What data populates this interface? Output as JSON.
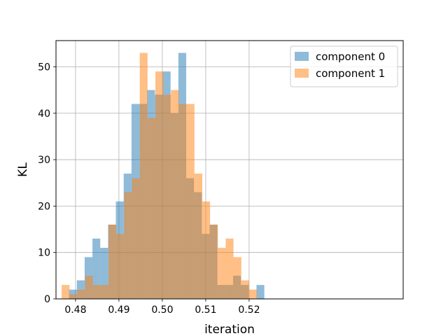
{
  "chart_data": {
    "type": "histogram",
    "xlabel": "iteration",
    "ylabel": "KL",
    "xlim": [
      0.4755,
      0.5555
    ],
    "ylim": [
      0,
      55.65
    ],
    "xticks": [
      0.48,
      0.49,
      0.5,
      0.51,
      0.52
    ],
    "xtick_labels": [
      "0.48",
      "0.49",
      "0.50",
      "0.51",
      "0.52"
    ],
    "yticks": [
      0,
      10,
      20,
      30,
      40,
      50
    ],
    "ytick_labels": [
      "0",
      "10",
      "20",
      "30",
      "40",
      "50"
    ],
    "grid": true,
    "legend_position": "upper right",
    "series": [
      {
        "name": "component 0",
        "color": "#1f77b4",
        "alpha": 0.5,
        "bins": [
          {
            "x0": 0.4785,
            "x1": 0.4803,
            "count": 2
          },
          {
            "x0": 0.4803,
            "x1": 0.4821,
            "count": 4
          },
          {
            "x0": 0.4821,
            "x1": 0.4839,
            "count": 9
          },
          {
            "x0": 0.4839,
            "x1": 0.4857,
            "count": 13
          },
          {
            "x0": 0.4857,
            "x1": 0.4875,
            "count": 11
          },
          {
            "x0": 0.4875,
            "x1": 0.4893,
            "count": 16
          },
          {
            "x0": 0.4893,
            "x1": 0.4911,
            "count": 21
          },
          {
            "x0": 0.4911,
            "x1": 0.4929,
            "count": 27
          },
          {
            "x0": 0.4929,
            "x1": 0.4947,
            "count": 42
          },
          {
            "x0": 0.4947,
            "x1": 0.4965,
            "count": 42
          },
          {
            "x0": 0.4965,
            "x1": 0.4983,
            "count": 45
          },
          {
            "x0": 0.4983,
            "x1": 0.5001,
            "count": 44
          },
          {
            "x0": 0.5001,
            "x1": 0.5019,
            "count": 49
          },
          {
            "x0": 0.5019,
            "x1": 0.5037,
            "count": 40
          },
          {
            "x0": 0.5037,
            "x1": 0.5055,
            "count": 53
          },
          {
            "x0": 0.5055,
            "x1": 0.5073,
            "count": 26
          },
          {
            "x0": 0.5073,
            "x1": 0.5091,
            "count": 23
          },
          {
            "x0": 0.5091,
            "x1": 0.5109,
            "count": 14
          },
          {
            "x0": 0.5109,
            "x1": 0.5127,
            "count": 16
          },
          {
            "x0": 0.5127,
            "x1": 0.5145,
            "count": 3
          },
          {
            "x0": 0.5145,
            "x1": 0.5163,
            "count": 3
          },
          {
            "x0": 0.5163,
            "x1": 0.5181,
            "count": 5
          },
          {
            "x0": 0.5181,
            "x1": 0.5199,
            "count": 3
          },
          {
            "x0": 0.5199,
            "x1": 0.5217,
            "count": 0
          },
          {
            "x0": 0.5217,
            "x1": 0.5235,
            "count": 3
          }
        ]
      },
      {
        "name": "component 1",
        "color": "#ff7f0e",
        "alpha": 0.5,
        "bins": [
          {
            "x0": 0.4768,
            "x1": 0.4786,
            "count": 3
          },
          {
            "x0": 0.4786,
            "x1": 0.4804,
            "count": 1
          },
          {
            "x0": 0.4804,
            "x1": 0.4822,
            "count": 2
          },
          {
            "x0": 0.4822,
            "x1": 0.484,
            "count": 5
          },
          {
            "x0": 0.484,
            "x1": 0.4858,
            "count": 3
          },
          {
            "x0": 0.4858,
            "x1": 0.4876,
            "count": 3
          },
          {
            "x0": 0.4876,
            "x1": 0.4894,
            "count": 16
          },
          {
            "x0": 0.4894,
            "x1": 0.4912,
            "count": 14
          },
          {
            "x0": 0.4912,
            "x1": 0.493,
            "count": 23
          },
          {
            "x0": 0.493,
            "x1": 0.4948,
            "count": 26
          },
          {
            "x0": 0.4948,
            "x1": 0.4966,
            "count": 53
          },
          {
            "x0": 0.4966,
            "x1": 0.4984,
            "count": 39
          },
          {
            "x0": 0.4984,
            "x1": 0.5002,
            "count": 49
          },
          {
            "x0": 0.5002,
            "x1": 0.502,
            "count": 44
          },
          {
            "x0": 0.502,
            "x1": 0.5038,
            "count": 45
          },
          {
            "x0": 0.5038,
            "x1": 0.5056,
            "count": 42
          },
          {
            "x0": 0.5056,
            "x1": 0.5074,
            "count": 42
          },
          {
            "x0": 0.5074,
            "x1": 0.5092,
            "count": 27
          },
          {
            "x0": 0.5092,
            "x1": 0.511,
            "count": 21
          },
          {
            "x0": 0.511,
            "x1": 0.5128,
            "count": 16
          },
          {
            "x0": 0.5128,
            "x1": 0.5146,
            "count": 11
          },
          {
            "x0": 0.5146,
            "x1": 0.5164,
            "count": 13
          },
          {
            "x0": 0.5164,
            "x1": 0.5182,
            "count": 9
          },
          {
            "x0": 0.5182,
            "x1": 0.52,
            "count": 4
          },
          {
            "x0": 0.52,
            "x1": 0.5218,
            "count": 2
          }
        ]
      }
    ]
  }
}
